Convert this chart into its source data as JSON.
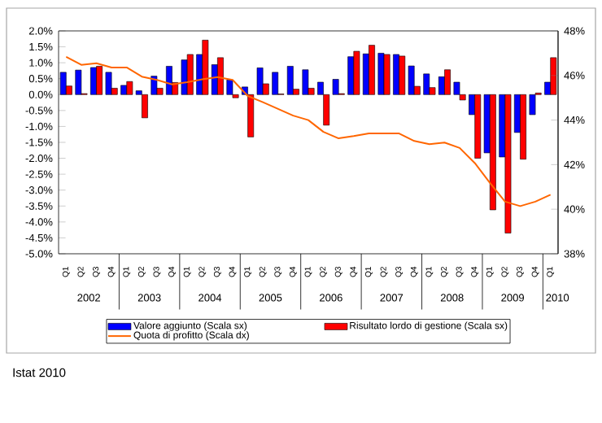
{
  "chart_data": {
    "type": "bar",
    "categories": [
      "Q1",
      "Q2",
      "Q3",
      "Q4",
      "Q1",
      "Q2",
      "Q3",
      "Q4",
      "Q1",
      "Q2",
      "Q3",
      "Q4",
      "Q1",
      "Q2",
      "Q3",
      "Q4",
      "Q1",
      "Q2",
      "Q3",
      "Q4",
      "Q1",
      "Q2",
      "Q3",
      "Q4",
      "Q1",
      "Q2",
      "Q3",
      "Q4",
      "Q1",
      "Q2",
      "Q3",
      "Q4",
      "Q1"
    ],
    "series": [
      {
        "name": "Valore aggiunto (Scala sx)",
        "color": "#0000ff",
        "values": [
          0.7,
          0.77,
          0.85,
          0.7,
          0.29,
          0.12,
          0.58,
          0.89,
          1.09,
          1.26,
          0.94,
          0.46,
          0.24,
          0.84,
          0.7,
          0.89,
          0.78,
          0.39,
          0.48,
          1.19,
          1.28,
          1.3,
          1.26,
          0.9,
          0.65,
          0.56,
          0.39,
          -0.63,
          -1.83,
          -1.96,
          -1.19,
          -0.63,
          0.39
        ]
      },
      {
        "name": "Risultato lordo di gestione (Scala sx)",
        "color": "#ff0000",
        "values": [
          0.27,
          0.03,
          0.89,
          0.2,
          0.41,
          -0.73,
          0.2,
          0.38,
          1.26,
          1.71,
          1.16,
          -0.1,
          -1.33,
          0.34,
          0.02,
          0.17,
          0.2,
          -0.96,
          0.03,
          1.36,
          1.55,
          1.26,
          1.21,
          0.26,
          0.22,
          0.78,
          -0.17,
          -2.0,
          -3.62,
          -4.35,
          -2.03,
          0.05,
          1.16
        ]
      },
      {
        "name": "Quota di profitto (Scala dx)",
        "type": "line",
        "axis": "y2",
        "color": "#ff6600",
        "values": [
          46.84,
          46.48,
          46.55,
          46.36,
          46.36,
          45.95,
          45.8,
          45.6,
          45.7,
          45.83,
          45.93,
          45.8,
          45.08,
          44.8,
          44.5,
          44.2,
          44.0,
          43.47,
          43.18,
          43.28,
          43.4,
          43.4,
          43.4,
          43.06,
          42.92,
          42.99,
          42.75,
          42.07,
          41.18,
          40.34,
          40.14,
          40.34,
          40.65
        ]
      }
    ],
    "ylim": [
      -5,
      2
    ],
    "yticks": [
      {
        "value": -5,
        "label": "-5.0%"
      },
      {
        "value": -4.5,
        "label": "-4.5%"
      },
      {
        "value": -4,
        "label": "-4.0%"
      },
      {
        "value": -3.5,
        "label": "-3.5%"
      },
      {
        "value": -3,
        "label": "-3.0%"
      },
      {
        "value": -2.5,
        "label": "-2.5%"
      },
      {
        "value": -2,
        "label": "-2.0%"
      },
      {
        "value": -1.5,
        "label": "-1.5%"
      },
      {
        "value": -1,
        "label": "-1.0%"
      },
      {
        "value": -0.5,
        "label": "-0.5%"
      },
      {
        "value": 0,
        "label": "0.0%"
      },
      {
        "value": 0.5,
        "label": "0.5%"
      },
      {
        "value": 1,
        "label": "1.0%"
      },
      {
        "value": 1.5,
        "label": "1.5%"
      },
      {
        "value": 2,
        "label": "2.0%"
      }
    ],
    "y2lim": [
      38,
      48
    ],
    "y2ticks": [
      {
        "value": 38,
        "label": "38%"
      },
      {
        "value": 40,
        "label": "40%"
      },
      {
        "value": 42,
        "label": "42%"
      },
      {
        "value": 44,
        "label": "44%"
      },
      {
        "value": 46,
        "label": "46%"
      },
      {
        "value": 48,
        "label": "48%"
      }
    ],
    "legend": "bottom",
    "grid": false,
    "annotations": [
      "2002",
      "2003",
      "2004",
      "2005",
      "2006",
      "2007",
      "2008",
      "2009",
      "2010",
      "Istat 2010"
    ]
  }
}
